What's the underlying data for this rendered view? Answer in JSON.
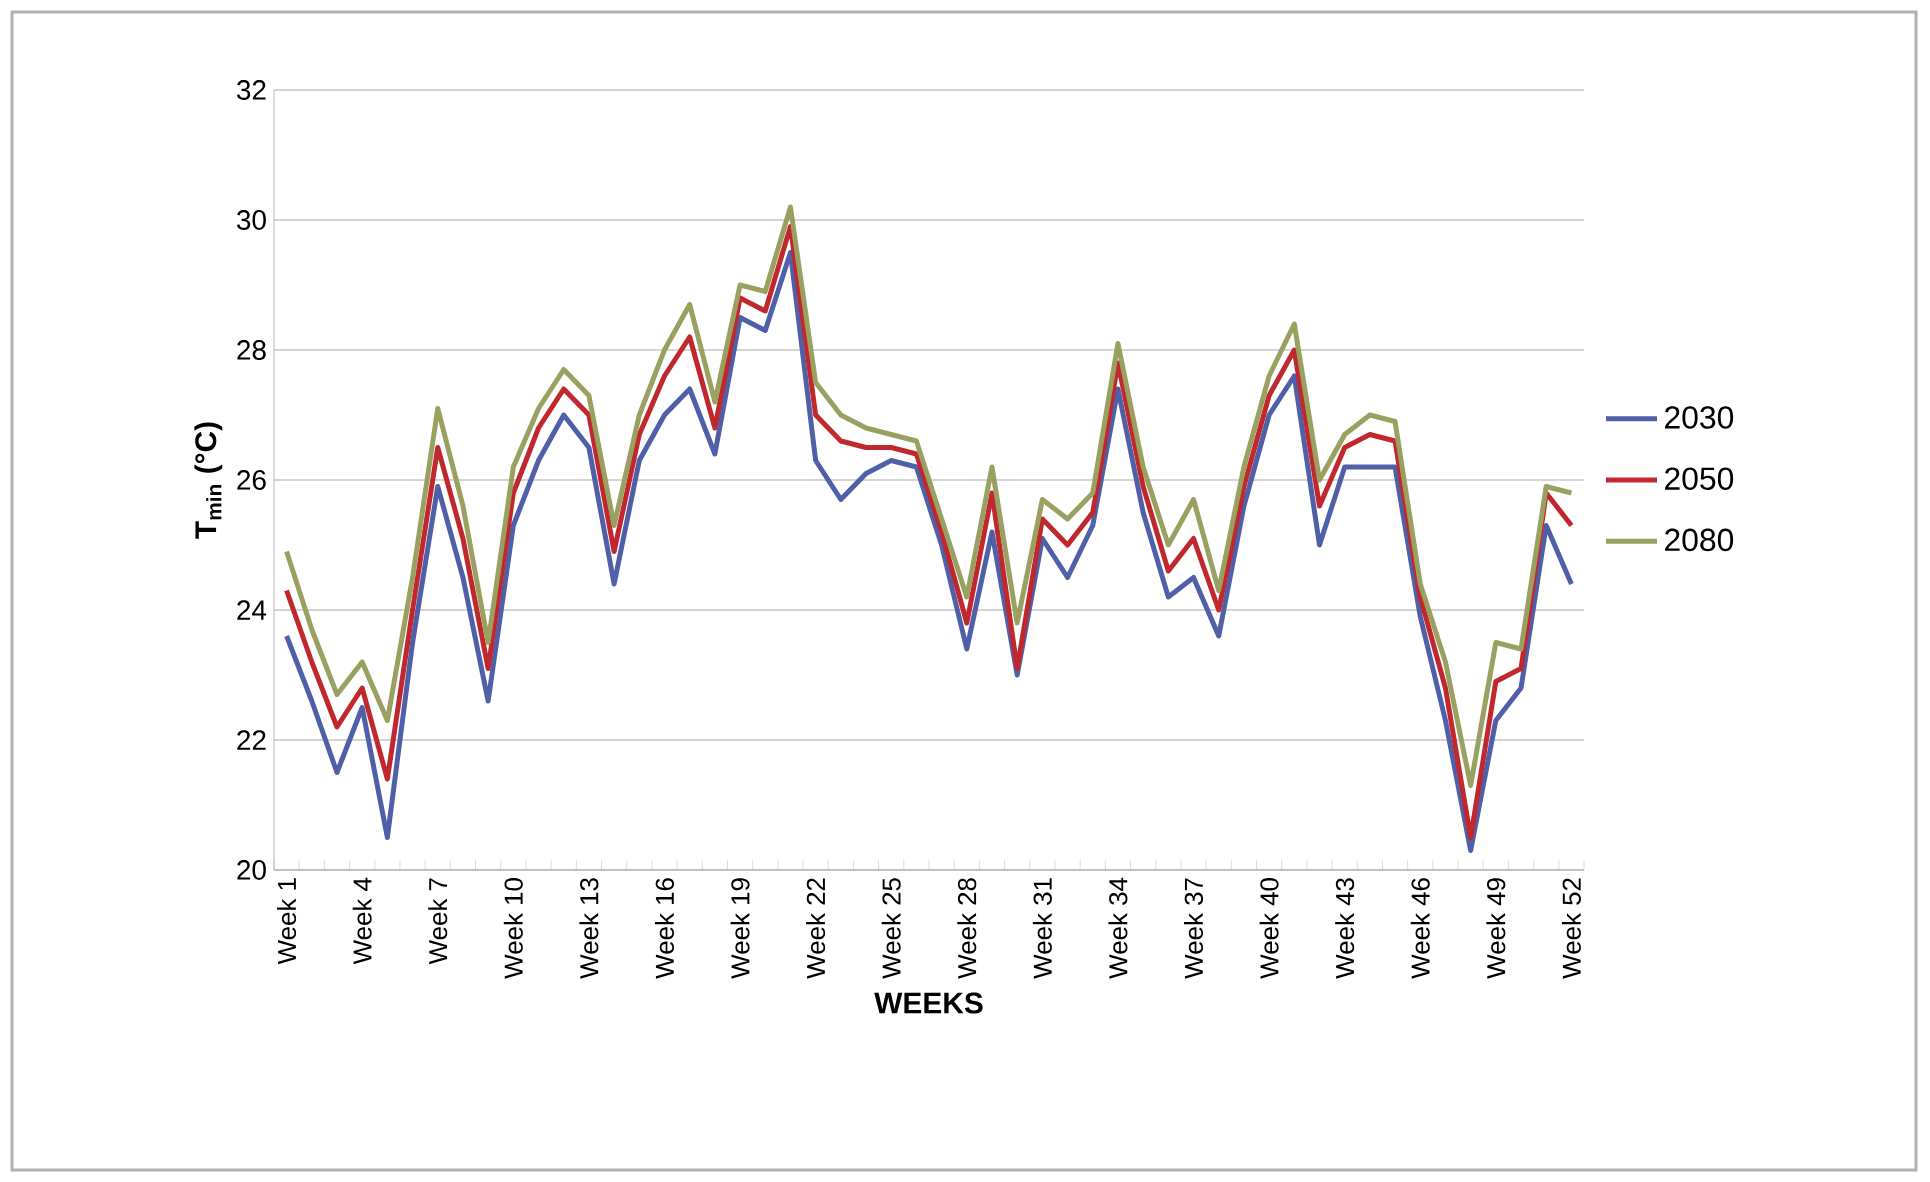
{
  "chart_data": {
    "type": "line",
    "xlabel": "**WEEKS**",
    "ylabel": "**T$_{min}$ (°C)**",
    "categories": [
      "Week 1",
      null,
      null,
      "Week 4",
      null,
      null,
      "Week 7",
      null,
      null,
      "Week 10",
      null,
      null,
      "Week 13",
      null,
      null,
      "Week 16",
      null,
      null,
      "Week 19",
      null,
      null,
      "Week 22",
      null,
      null,
      "Week 25",
      null,
      null,
      "Week 28",
      null,
      null,
      "Week 31",
      null,
      null,
      "Week 34",
      null,
      null,
      "Week 37",
      null,
      null,
      "Week 40",
      null,
      null,
      "Week 43",
      null,
      null,
      "Week 46",
      null,
      null,
      "Week 49",
      null,
      null,
      "Week 52"
    ],
    "series": [
      {
        "name": "2030",
        "color": "#4f5fa8",
        "values": [
          23.6,
          22.6,
          21.5,
          22.5,
          20.5,
          23.5,
          25.9,
          24.5,
          22.6,
          25.3,
          26.3,
          27.0,
          26.5,
          24.4,
          26.3,
          27.0,
          27.4,
          26.4,
          28.5,
          28.3,
          29.5,
          26.3,
          25.7,
          26.1,
          26.3,
          26.2,
          25.0,
          23.4,
          25.2,
          23.0,
          25.1,
          24.5,
          25.3,
          27.4,
          25.5,
          24.2,
          24.5,
          23.6,
          25.6,
          27.0,
          27.6,
          25.0,
          26.2,
          26.2,
          26.2,
          23.9,
          22.3,
          20.3,
          22.3,
          22.8,
          25.3,
          24.4
        ]
      },
      {
        "name": "2050",
        "color": "#c0282d",
        "values": [
          24.3,
          23.2,
          22.2,
          22.8,
          21.4,
          24.0,
          26.5,
          25.1,
          23.1,
          25.8,
          26.8,
          27.4,
          27.0,
          24.9,
          26.7,
          27.6,
          28.2,
          26.8,
          28.8,
          28.6,
          29.9,
          27.0,
          26.6,
          26.5,
          26.5,
          26.4,
          25.2,
          23.8,
          25.8,
          23.1,
          25.4,
          25.0,
          25.5,
          27.8,
          25.9,
          24.6,
          25.1,
          24.0,
          25.9,
          27.3,
          28.0,
          25.6,
          26.5,
          26.7,
          26.6,
          24.2,
          22.8,
          20.5,
          22.9,
          23.1,
          25.8,
          25.3
        ]
      },
      {
        "name": "2080",
        "color": "#9aa060",
        "values": [
          24.9,
          23.7,
          22.7,
          23.2,
          22.3,
          24.5,
          27.1,
          25.6,
          23.5,
          26.2,
          27.1,
          27.7,
          27.3,
          25.3,
          27.0,
          28.0,
          28.7,
          27.2,
          29.0,
          28.9,
          30.2,
          27.5,
          27.0,
          26.8,
          26.7,
          26.6,
          25.4,
          24.2,
          26.2,
          23.8,
          25.7,
          25.4,
          25.8,
          28.1,
          26.2,
          25.0,
          25.7,
          24.3,
          26.2,
          27.6,
          28.4,
          26.0,
          26.7,
          27.0,
          26.9,
          24.4,
          23.2,
          21.3,
          23.5,
          23.4,
          25.9,
          25.8
        ]
      }
    ],
    "ylim": [
      20,
      32
    ],
    "yticks": [
      20,
      22,
      24,
      26,
      28,
      30,
      32
    ],
    "grid": "y",
    "legend": "right"
  }
}
